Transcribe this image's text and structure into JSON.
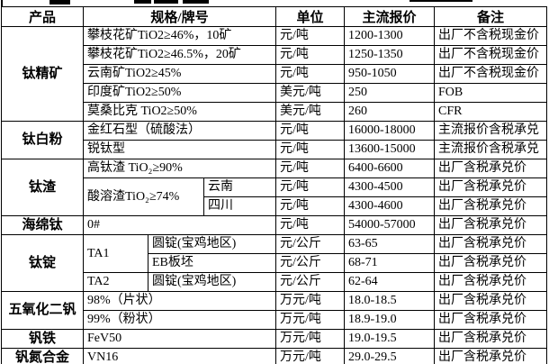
{
  "colors": {
    "background": "#ffffff",
    "border": "#000000",
    "text": "#000000"
  },
  "table": {
    "headers": [
      "产品",
      "规格/牌号",
      "单位",
      "主流报价",
      "备注"
    ],
    "rows": [
      {
        "product": "钛精矿",
        "spec": "攀枝花矿TiO2≥46%，10矿",
        "unit": "元/吨",
        "price": "1200-1300",
        "note": "出厂不含税现金价"
      },
      {
        "spec": "攀枝花矿TiO2≥46.5%，20矿",
        "unit": "元/吨",
        "price": "1250-1350",
        "note": "出厂不含税现金价"
      },
      {
        "spec": "云南矿TiO2≥45%",
        "unit": "元/吨",
        "price": "950-1050",
        "note": "出厂不含税现金价"
      },
      {
        "spec": "印度矿TiO2≥50%",
        "unit": "美元/吨",
        "price": "250",
        "note": "FOB"
      },
      {
        "spec": "莫桑比克 TiO2≥50%",
        "unit": "美元/吨",
        "price": "260",
        "note": "CFR"
      },
      {
        "product": "钛白粉",
        "spec": "金红石型（硫酸法）",
        "unit": "元/吨",
        "price": "16000-18000",
        "note": "主流报价含税承兑"
      },
      {
        "spec": "锐钛型",
        "unit": "元/吨",
        "price": "13600-15000",
        "note": "主流报价含税承兑"
      },
      {
        "product": "钛渣",
        "spec": "高钛渣 TiO₂≥90%",
        "unit": "元/吨",
        "price": "6400-6600",
        "note": "出厂含税承兑价"
      },
      {
        "spec1": "酸溶渣TiO₂≥74%",
        "spec2": "云南",
        "unit": "元/吨",
        "price": "4300-4500",
        "note": "出厂含税承兑价"
      },
      {
        "spec2": "四川",
        "unit": "元/吨",
        "price": "4300-4600",
        "note": "出厂含税承兑价"
      },
      {
        "product": "海绵钛",
        "spec": "0#",
        "unit": "元/吨",
        "price": "54000-57000",
        "note": "出厂含税承兑价"
      },
      {
        "product": "钛锭",
        "spec1": "TA1",
        "spec2": "圆锭(宝鸡地区)",
        "unit": "元/公斤",
        "price": "63-65",
        "note": "出厂含税承兑价"
      },
      {
        "spec2": "EB板坯",
        "unit": "元/公斤",
        "price": "68-71",
        "note": "出厂含税承兑价"
      },
      {
        "spec1": "TA2",
        "spec2": "圆锭(宝鸡地区)",
        "unit": "元/公斤",
        "price": "62-64",
        "note": "出厂含税承兑价"
      },
      {
        "product": "五氧化二钒",
        "spec": "98%（片状）",
        "unit": "万元/吨",
        "price": "18.0-18.5",
        "note": "出厂含税承兑价"
      },
      {
        "spec": "99%（粉状）",
        "unit": "万元/吨",
        "price": "18.9-19.0",
        "note": "出厂含税承兑价"
      },
      {
        "product": "钒铁",
        "spec": "FeV50",
        "unit": "万元/吨",
        "price": "19.0-19.5",
        "note": "出厂含税承兑价"
      },
      {
        "product": "钒氮合金",
        "spec": "VN16",
        "unit": "万元/吨",
        "price": "29.0-29.5",
        "note": "出厂含税承兑价"
      }
    ]
  }
}
